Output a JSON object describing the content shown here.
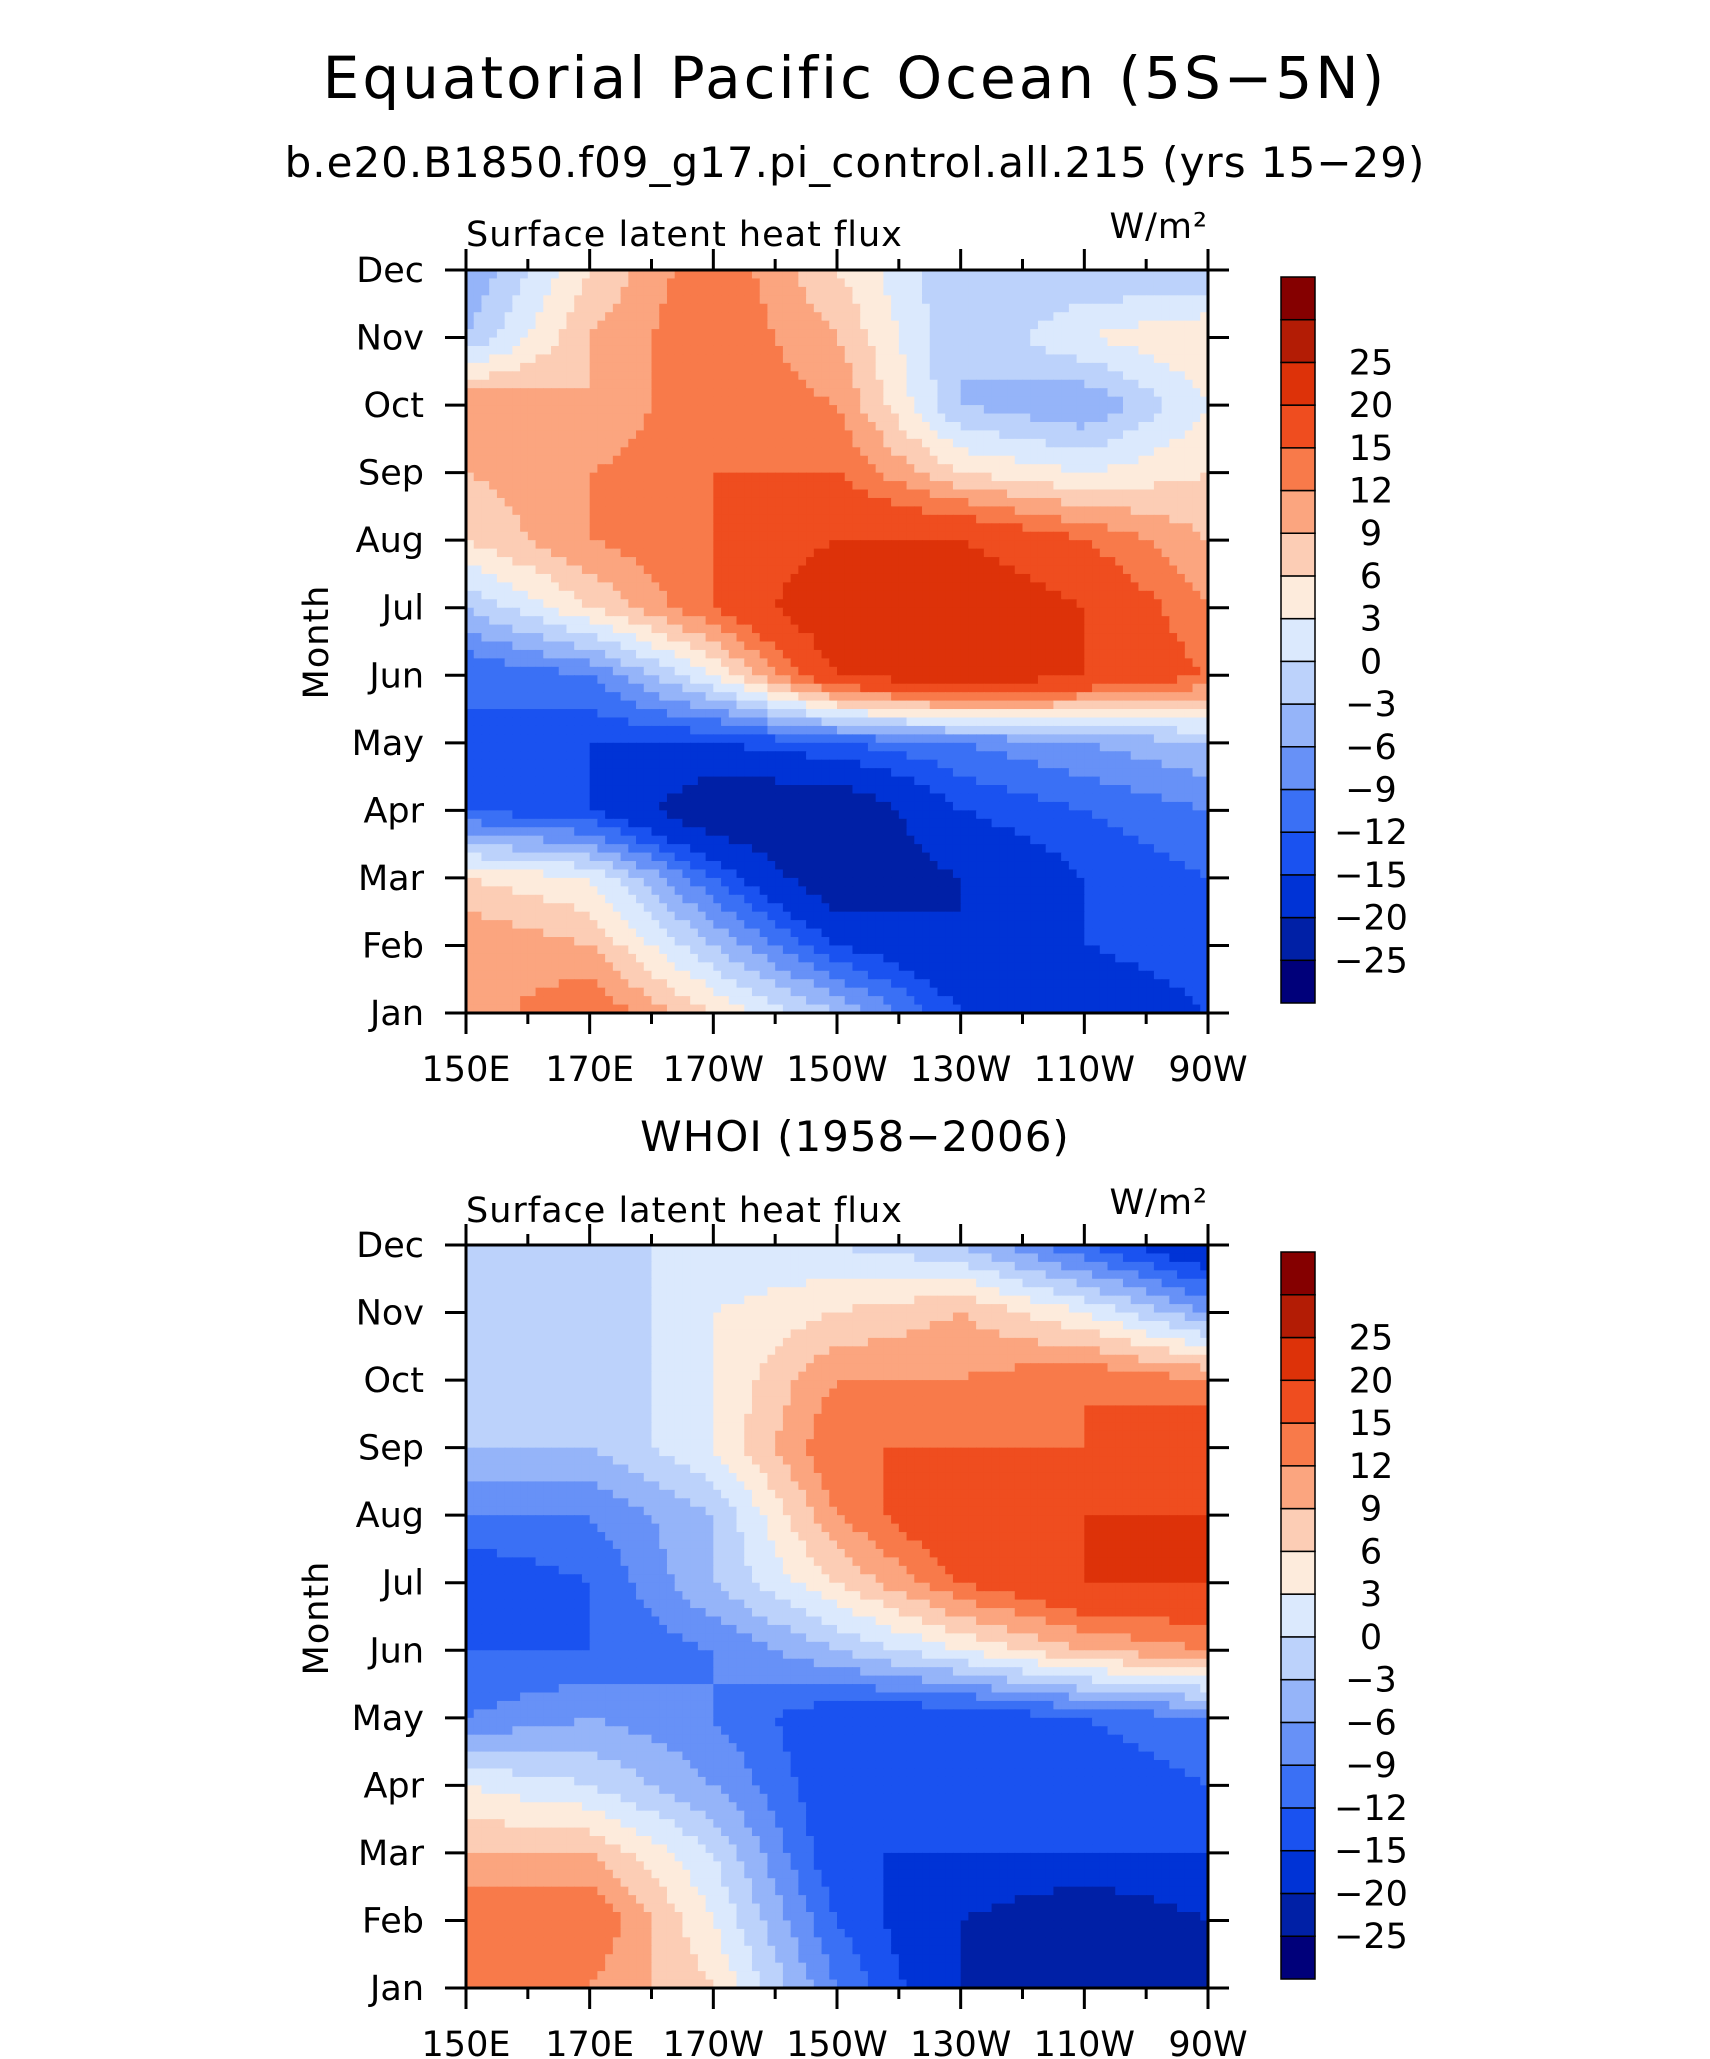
{
  "figure": {
    "title": "Equatorial Pacific Ocean (5S−5N)",
    "model_label": "b.e20.B1850.f09_g17.pi_control.all.215 (yrs 15−29)",
    "obs_label": "WHOI (1958−2006)"
  },
  "chart_data": [
    {
      "type": "heatmap",
      "title": "Surface latent heat flux",
      "units_label": "W/m²",
      "ylabel": "Month",
      "xlabel": "",
      "x_ticklabels": [
        "150E",
        "170E",
        "170W",
        "150W",
        "130W",
        "110W",
        "90W"
      ],
      "x_tick_values_lon_east": [
        150,
        170,
        190,
        210,
        230,
        250,
        270
      ],
      "xlim": [
        150,
        270
      ],
      "y_ticklabels": [
        "Jan",
        "Feb",
        "Mar",
        "Apr",
        "May",
        "Jun",
        "Jul",
        "Aug",
        "Sep",
        "Oct",
        "Nov",
        "Dec"
      ],
      "colorbar_levels": [
        -25,
        -20,
        -15,
        -12,
        -9,
        -6,
        -3,
        0,
        3,
        6,
        9,
        12,
        15,
        20,
        25
      ],
      "grid": false,
      "grid_lon": [
        150,
        170,
        190,
        210,
        230,
        250,
        270
      ],
      "values": [
        [
          10,
          15,
          6,
          -3,
          -15,
          -20,
          -15
        ],
        [
          12,
          9,
          -3,
          -15,
          -20,
          -15,
          -12
        ],
        [
          6,
          3,
          -12,
          -25,
          -20,
          -15,
          -12
        ],
        [
          -12,
          -15,
          -25,
          -25,
          -15,
          -12,
          -9
        ],
        [
          -12,
          -15,
          -15,
          -12,
          -9,
          -6,
          -3
        ],
        [
          -12,
          -9,
          3,
          20,
          25,
          20,
          15
        ],
        [
          -3,
          6,
          15,
          25,
          25,
          20,
          12
        ],
        [
          6,
          12,
          15,
          20,
          20,
          15,
          9
        ],
        [
          9,
          12,
          15,
          15,
          6,
          3,
          6
        ],
        [
          12,
          9,
          15,
          12,
          -3,
          -6,
          3
        ],
        [
          -3,
          9,
          15,
          9,
          -3,
          3,
          6
        ],
        [
          -6,
          6,
          15,
          6,
          -3,
          -3,
          -3
        ]
      ]
    },
    {
      "type": "heatmap",
      "title": "Surface latent heat flux",
      "units_label": "W/m²",
      "ylabel": "Month",
      "xlabel": "",
      "x_ticklabels": [
        "150E",
        "170E",
        "170W",
        "150W",
        "130W",
        "110W",
        "90W"
      ],
      "x_tick_values_lon_east": [
        150,
        170,
        190,
        210,
        230,
        250,
        270
      ],
      "xlim": [
        150,
        270
      ],
      "y_ticklabels": [
        "Jan",
        "Feb",
        "Mar",
        "Apr",
        "May",
        "Jun",
        "Jul",
        "Aug",
        "Sep",
        "Oct",
        "Nov",
        "Dec"
      ],
      "colorbar_levels": [
        -25,
        -20,
        -15,
        -12,
        -9,
        -6,
        -3,
        0,
        3,
        6,
        9,
        12,
        15,
        20,
        25
      ],
      "grid": false,
      "grid_lon": [
        150,
        170,
        190,
        210,
        230,
        250,
        270
      ],
      "values": [
        [
          12,
          12,
          6,
          -9,
          -20,
          -25,
          -25
        ],
        [
          15,
          15,
          3,
          -12,
          -20,
          -25,
          -20
        ],
        [
          9,
          9,
          0,
          -15,
          -15,
          -15,
          -15
        ],
        [
          3,
          0,
          -6,
          -15,
          -15,
          -15,
          -12
        ],
        [
          -9,
          -6,
          -9,
          -15,
          -15,
          -12,
          -9
        ],
        [
          -12,
          -12,
          -9,
          -3,
          3,
          9,
          12
        ],
        [
          -15,
          -12,
          -3,
          6,
          15,
          20,
          20
        ],
        [
          -9,
          -9,
          -3,
          12,
          20,
          20,
          20
        ],
        [
          -3,
          -3,
          3,
          15,
          15,
          15,
          20
        ],
        [
          -3,
          -3,
          3,
          12,
          12,
          15,
          12
        ],
        [
          -3,
          -3,
          3,
          6,
          9,
          3,
          -6
        ],
        [
          0,
          0,
          0,
          0,
          -3,
          -12,
          -20
        ]
      ]
    }
  ]
}
